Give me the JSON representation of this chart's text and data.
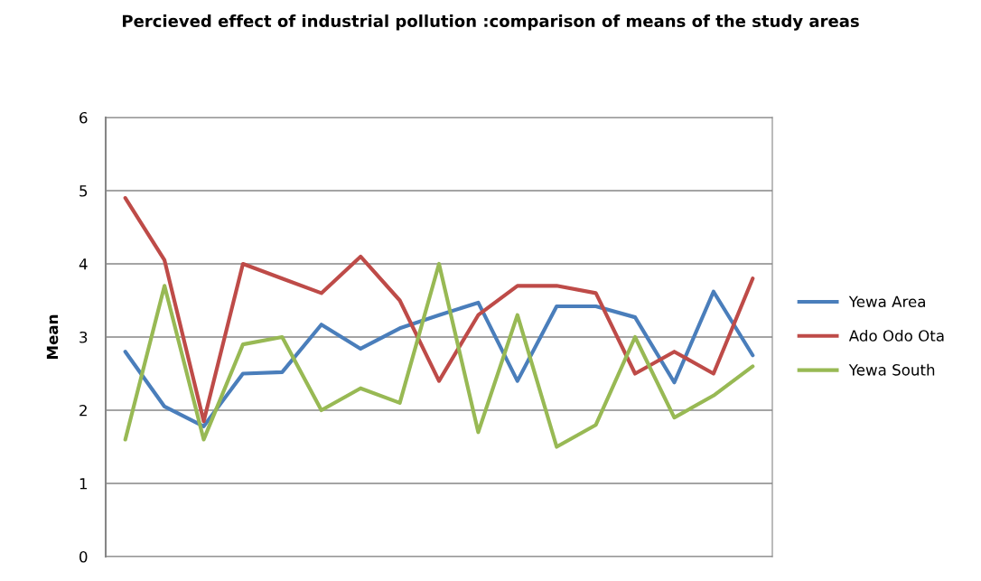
{
  "chart_data": {
    "type": "line",
    "title": "Percieved effect of industrial pollution :comparison of means of the study areas",
    "ylabel": "Mean",
    "categories": [
      null,
      null,
      null,
      null,
      null,
      null,
      null,
      null,
      null,
      null,
      null,
      null,
      null,
      null,
      null,
      null,
      null
    ],
    "series": [
      {
        "name": "Yewa Area",
        "color": "#4a7ebb",
        "values": [
          2.8,
          2.05,
          1.78,
          2.5,
          2.52,
          3.17,
          2.84,
          3.12,
          3.3,
          3.47,
          2.4,
          3.42,
          3.42,
          3.27,
          2.38,
          3.62,
          2.75
        ]
      },
      {
        "name": "Ado Odo Ota",
        "color": "#be4b48",
        "values": [
          4.9,
          4.05,
          1.85,
          4.0,
          3.8,
          3.6,
          4.1,
          3.5,
          2.4,
          3.3,
          3.7,
          3.7,
          3.6,
          2.5,
          2.8,
          2.5,
          3.8
        ]
      },
      {
        "name": "Yewa South",
        "color": "#98b954",
        "values": [
          1.6,
          3.7,
          1.6,
          2.9,
          3.0,
          2.0,
          2.3,
          2.1,
          4.0,
          1.7,
          3.3,
          1.5,
          1.8,
          3.0,
          1.9,
          2.2,
          2.6
        ]
      }
    ],
    "ylim": [
      0,
      6
    ],
    "yticks": [
      0,
      1,
      2,
      3,
      4,
      5,
      6
    ],
    "grid": "y",
    "legend": "right",
    "marker": "none",
    "line_style": "solid"
  }
}
